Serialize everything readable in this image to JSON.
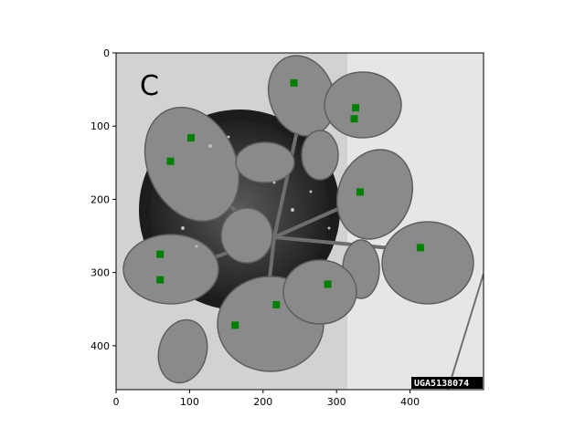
{
  "chart_data": {
    "type": "scatter",
    "panel_label": "C",
    "watermark": "UGA5138074",
    "xlim": [
      0,
      500
    ],
    "ylim": [
      460,
      0
    ],
    "x_ticks": [
      0,
      100,
      200,
      300,
      400
    ],
    "y_ticks": [
      0,
      100,
      200,
      300,
      400
    ],
    "grid": false,
    "marker_color": "#008000",
    "marker_shape": "square",
    "points": [
      {
        "x": 242,
        "y": 41
      },
      {
        "x": 326,
        "y": 75
      },
      {
        "x": 324,
        "y": 90
      },
      {
        "x": 102,
        "y": 116
      },
      {
        "x": 74,
        "y": 148
      },
      {
        "x": 332,
        "y": 190
      },
      {
        "x": 414,
        "y": 266
      },
      {
        "x": 60,
        "y": 275
      },
      {
        "x": 60,
        "y": 310
      },
      {
        "x": 288,
        "y": 316
      },
      {
        "x": 218,
        "y": 344
      },
      {
        "x": 162,
        "y": 372
      }
    ]
  }
}
